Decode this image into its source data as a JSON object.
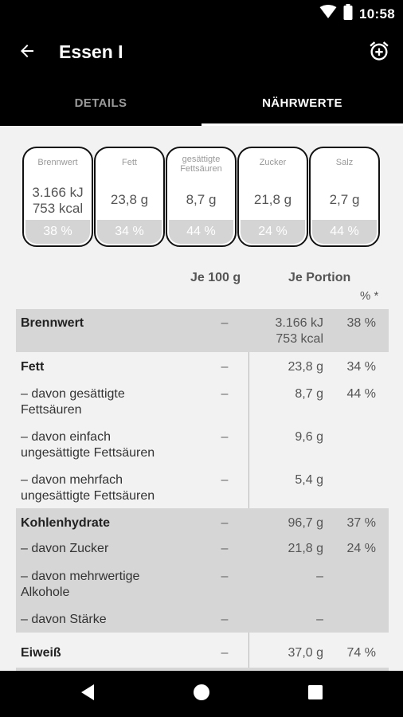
{
  "status_bar": {
    "time": "10:58"
  },
  "app_bar": {
    "title": "Essen I"
  },
  "tabs": [
    {
      "label": "DETAILS",
      "active": false
    },
    {
      "label": "NÄHRWERTE",
      "active": true
    }
  ],
  "gda": [
    {
      "label": "Brennwert",
      "value_line1": "3.166 kJ",
      "value_line2": "753 kcal",
      "percent": "38 %"
    },
    {
      "label": "Fett",
      "value_line1": "23,8 g",
      "percent": "34 %"
    },
    {
      "label_line1": "gesättigte",
      "label_line2": "Fettsäuren",
      "value_line1": "8,7 g",
      "percent": "44 %"
    },
    {
      "label": "Zucker",
      "value_line1": "21,8 g",
      "percent": "24 %"
    },
    {
      "label": "Salz",
      "value_line1": "2,7 g",
      "percent": "44 %"
    }
  ],
  "table": {
    "col_per100": "Je 100 g",
    "col_portion": "Je Portion",
    "col_pct": "% *",
    "rows": [
      {
        "name_line1": "Brennwert",
        "per100": "–",
        "portion_line1": "3.166 kJ",
        "portion_line2": "753 kcal",
        "pct": "38 %"
      },
      {
        "name_line1": "Fett",
        "per100": "–",
        "portion_line1": "23,8 g",
        "pct": "34 %"
      },
      {
        "name_line1": "– davon gesättigte",
        "name_line2": "Fettsäuren",
        "per100": "–",
        "portion_line1": "8,7 g",
        "pct": "44 %"
      },
      {
        "name_line1": "– davon einfach",
        "name_line2": "ungesättigte Fettsäuren",
        "per100": "–",
        "portion_line1": "9,6 g"
      },
      {
        "name_line1": "– davon mehrfach",
        "name_line2": "ungesättigte Fettsäuren",
        "per100": "–",
        "portion_line1": "5,4 g"
      },
      {
        "name_line1": "Kohlenhydrate",
        "per100": "–",
        "portion_line1": "96,7 g",
        "pct": "37 %"
      },
      {
        "name_line1": "– davon Zucker",
        "per100": "–",
        "portion_line1": "21,8 g",
        "pct": "24 %"
      },
      {
        "name_line1": "– davon mehrwertige",
        "name_line2": "Alkohole",
        "per100": "–",
        "portion_line1": "–"
      },
      {
        "name_line1": "– davon Stärke",
        "per100": "–",
        "portion_line1": "–"
      },
      {
        "name_line1": "Eiweiß",
        "per100": "–",
        "portion_line1": "37,0 g",
        "pct": "74 %"
      }
    ]
  },
  "colors": {
    "bar_bg": "#000000",
    "shaded_row": "#d6d6d6",
    "pct_band": "#d4d4d4"
  },
  "icons": [
    "signal-icon",
    "battery-icon",
    "back-arrow-icon",
    "add-alarm-icon",
    "nav-back-icon",
    "nav-home-icon",
    "nav-recents-icon"
  ]
}
